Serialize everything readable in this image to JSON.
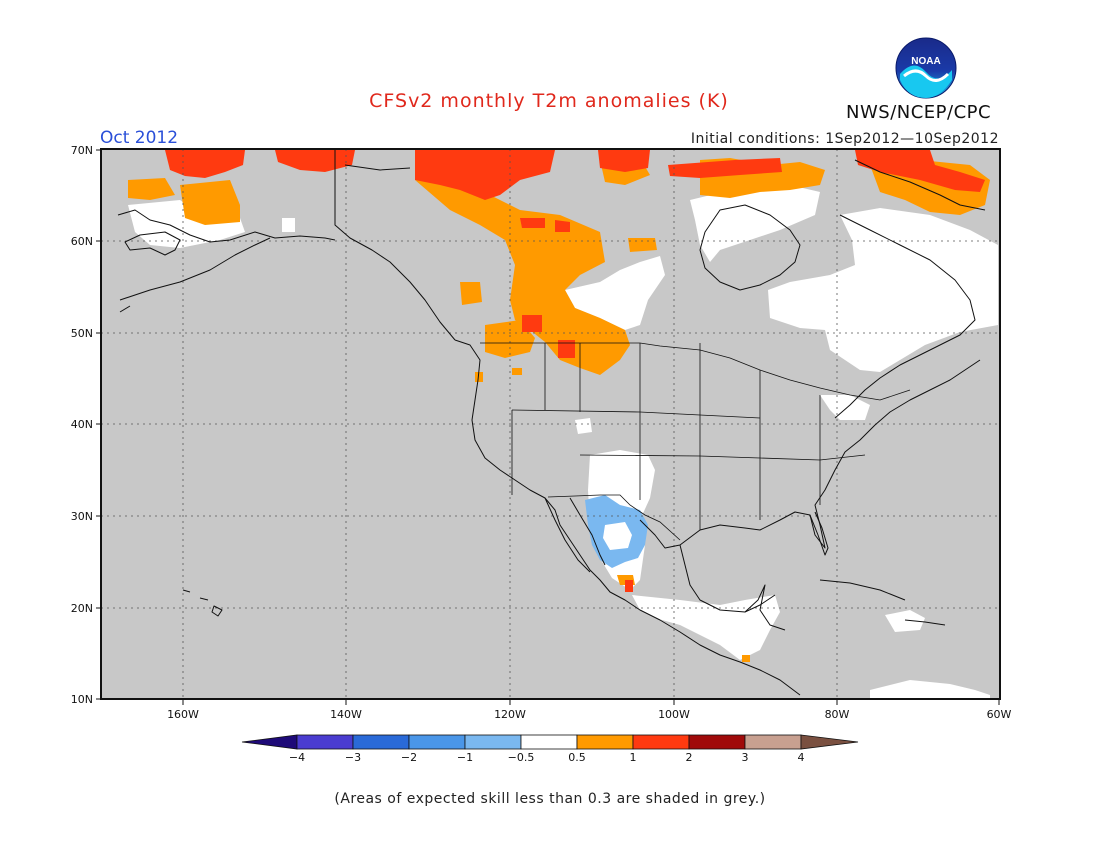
{
  "title": "CFSv2 monthly T2m anomalies (K)",
  "period": "Oct 2012",
  "initial_conditions": "Initial conditions: 1Sep2012—10Sep2012",
  "organization": "NWS/NCEP/CPC",
  "logo_text": "NOAA",
  "footnote": "(Areas of expected skill less than 0.3 are shaded in grey.)",
  "map": {
    "lon_range": [
      -170,
      -60
    ],
    "lat_range": [
      10,
      70
    ],
    "lat_labels": [
      "70N",
      "60N",
      "50N",
      "40N",
      "30N",
      "20N",
      "10N"
    ],
    "lon_labels": [
      "160W",
      "140W",
      "120W",
      "100W",
      "80W",
      "60W"
    ],
    "background_color": "#c8c8c8",
    "land_outline_color": "#111111"
  },
  "colorbar": {
    "labels": [
      "−4",
      "−3",
      "−2",
      "−1",
      "−0.5",
      "0.5",
      "1",
      "2",
      "3",
      "4"
    ],
    "colors": [
      "#1e0a78",
      "#4a3cd0",
      "#2a6ad8",
      "#4a96e8",
      "#7ab8f0",
      "#ffffff",
      "#ff9a00",
      "#ff3a10",
      "#a00a0a",
      "#c8a090",
      "#7a5040"
    ]
  },
  "anomaly_colors": {
    "grey": "#c8c8c8",
    "white": "#ffffff",
    "orange": "#ff9a00",
    "red": "#ff3a10",
    "blue": "#7ab8f0"
  }
}
